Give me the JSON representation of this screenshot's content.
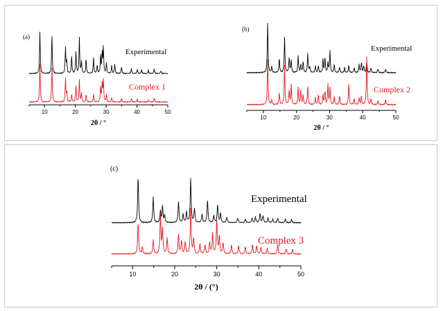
{
  "colors": {
    "experimental": "#000000",
    "simulated": "#e8141c",
    "axis": "#000000",
    "frame": "#c9c9c9"
  },
  "chart_data": [
    {
      "type": "line",
      "panel_label": "(a)",
      "xlabel": "2θ / °",
      "xlim": [
        5,
        50
      ],
      "xticks": [
        10,
        20,
        30,
        40,
        50
      ],
      "y_axis_shown": false,
      "series": [
        {
          "name": "Experimental",
          "color": "#000000",
          "peaks": [
            [
              8.5,
              1.0
            ],
            [
              12.4,
              0.92
            ],
            [
              16.8,
              0.62
            ],
            [
              17.2,
              0.3
            ],
            [
              18.8,
              0.42
            ],
            [
              20.2,
              0.52
            ],
            [
              21.3,
              0.85
            ],
            [
              22.0,
              0.28
            ],
            [
              23.5,
              0.35
            ],
            [
              25.9,
              0.38
            ],
            [
              27.1,
              0.2
            ],
            [
              28.2,
              0.42
            ],
            [
              28.7,
              0.5
            ],
            [
              29.1,
              0.62
            ],
            [
              30.1,
              0.26
            ],
            [
              31.8,
              0.2
            ],
            [
              32.8,
              0.22
            ],
            [
              35.0,
              0.16
            ],
            [
              38.2,
              0.12
            ],
            [
              40.1,
              0.1
            ],
            [
              41.5,
              0.1
            ],
            [
              43.7,
              0.08
            ],
            [
              45.6,
              0.12
            ],
            [
              47.8,
              0.07
            ]
          ]
        },
        {
          "name": "Complex 1",
          "color": "#e8141c",
          "peaks": [
            [
              8.5,
              1.0
            ],
            [
              12.4,
              0.92
            ],
            [
              16.8,
              0.6
            ],
            [
              17.2,
              0.25
            ],
            [
              18.8,
              0.2
            ],
            [
              20.2,
              0.42
            ],
            [
              21.3,
              0.58
            ],
            [
              22.0,
              0.22
            ],
            [
              23.5,
              0.2
            ],
            [
              25.9,
              0.2
            ],
            [
              28.2,
              0.38
            ],
            [
              28.7,
              0.5
            ],
            [
              29.1,
              0.58
            ],
            [
              30.1,
              0.18
            ],
            [
              31.8,
              0.12
            ],
            [
              35.0,
              0.1
            ],
            [
              38.2,
              0.1
            ],
            [
              40.1,
              0.08
            ],
            [
              43.7,
              0.06
            ],
            [
              45.6,
              0.1
            ]
          ]
        }
      ]
    },
    {
      "type": "line",
      "panel_label": "(b)",
      "xlabel": "2θ / °",
      "xlim": [
        5,
        50
      ],
      "xticks": [
        10,
        20,
        30,
        40,
        50
      ],
      "y_axis_shown": false,
      "series": [
        {
          "name": "Experimental",
          "color": "#000000",
          "peaks": [
            [
              11.3,
              1.0
            ],
            [
              12.5,
              0.12
            ],
            [
              14.8,
              0.28
            ],
            [
              16.4,
              0.7
            ],
            [
              17.8,
              0.3
            ],
            [
              18.4,
              0.25
            ],
            [
              20.5,
              0.34
            ],
            [
              21.3,
              0.16
            ],
            [
              22.0,
              0.22
            ],
            [
              23.4,
              0.38
            ],
            [
              24.0,
              0.12
            ],
            [
              25.7,
              0.14
            ],
            [
              26.6,
              0.14
            ],
            [
              28.0,
              0.26
            ],
            [
              28.6,
              0.3
            ],
            [
              29.5,
              0.2
            ],
            [
              30.1,
              0.44
            ],
            [
              31.4,
              0.16
            ],
            [
              33.0,
              0.12
            ],
            [
              34.5,
              0.1
            ],
            [
              35.8,
              0.14
            ],
            [
              37.4,
              0.1
            ],
            [
              38.9,
              0.16
            ],
            [
              39.6,
              0.2
            ],
            [
              40.3,
              0.14
            ],
            [
              41.2,
              0.22
            ],
            [
              42.5,
              0.1
            ],
            [
              44.6,
              0.08
            ],
            [
              46.9,
              0.07
            ]
          ]
        },
        {
          "name": "Complex 2",
          "color": "#e8141c",
          "peaks": [
            [
              11.3,
              0.95
            ],
            [
              12.5,
              0.1
            ],
            [
              14.8,
              0.25
            ],
            [
              16.4,
              0.8
            ],
            [
              17.8,
              0.3
            ],
            [
              18.4,
              0.4
            ],
            [
              20.5,
              0.35
            ],
            [
              21.3,
              0.3
            ],
            [
              22.0,
              0.2
            ],
            [
              23.4,
              0.38
            ],
            [
              25.7,
              0.14
            ],
            [
              26.6,
              0.2
            ],
            [
              28.0,
              0.2
            ],
            [
              28.6,
              0.28
            ],
            [
              29.5,
              0.42
            ],
            [
              30.1,
              0.34
            ],
            [
              31.4,
              0.16
            ],
            [
              33.0,
              0.18
            ],
            [
              35.8,
              0.44
            ],
            [
              37.4,
              0.12
            ],
            [
              38.9,
              0.14
            ],
            [
              39.6,
              0.18
            ],
            [
              41.2,
              0.98
            ],
            [
              42.5,
              0.12
            ],
            [
              44.6,
              0.08
            ],
            [
              46.9,
              0.1
            ]
          ]
        }
      ]
    },
    {
      "type": "line",
      "panel_label": "(c)",
      "xlabel": "2θ / (°)",
      "xlim": [
        5,
        50
      ],
      "xticks": [
        10,
        20,
        30,
        40,
        50
      ],
      "y_axis_shown": false,
      "series": [
        {
          "name": "Experimental",
          "color": "#000000",
          "peaks": [
            [
              11.3,
              1.0
            ],
            [
              14.9,
              0.55
            ],
            [
              16.6,
              0.25
            ],
            [
              17.1,
              0.35
            ],
            [
              17.6,
              0.15
            ],
            [
              20.9,
              0.45
            ],
            [
              22.0,
              0.18
            ],
            [
              22.8,
              0.22
            ],
            [
              23.8,
              0.95
            ],
            [
              24.7,
              0.3
            ],
            [
              26.5,
              0.18
            ],
            [
              27.8,
              0.48
            ],
            [
              29.3,
              0.15
            ],
            [
              30.2,
              0.38
            ],
            [
              30.9,
              0.2
            ],
            [
              32.4,
              0.12
            ],
            [
              35.0,
              0.1
            ],
            [
              36.8,
              0.08
            ],
            [
              38.4,
              0.1
            ],
            [
              39.2,
              0.12
            ],
            [
              40.3,
              0.2
            ],
            [
              41.0,
              0.15
            ],
            [
              42.2,
              0.1
            ],
            [
              43.3,
              0.08
            ],
            [
              44.5,
              0.1
            ],
            [
              46.3,
              0.08
            ],
            [
              47.8,
              0.07
            ]
          ]
        },
        {
          "name": "Complex 3",
          "color": "#e8141c",
          "peaks": [
            [
              11.3,
              0.7
            ],
            [
              12.3,
              0.15
            ],
            [
              14.9,
              0.3
            ],
            [
              16.6,
              0.85
            ],
            [
              17.1,
              0.55
            ],
            [
              18.2,
              0.35
            ],
            [
              20.9,
              0.42
            ],
            [
              21.6,
              0.3
            ],
            [
              22.5,
              0.26
            ],
            [
              23.8,
              1.0
            ],
            [
              24.5,
              0.35
            ],
            [
              26.0,
              0.22
            ],
            [
              27.2,
              0.2
            ],
            [
              28.3,
              0.25
            ],
            [
              29.0,
              0.45
            ],
            [
              30.0,
              0.75
            ],
            [
              30.6,
              0.4
            ],
            [
              31.5,
              0.25
            ],
            [
              33.5,
              0.2
            ],
            [
              35.2,
              0.18
            ],
            [
              36.8,
              0.15
            ],
            [
              38.5,
              0.2
            ],
            [
              39.5,
              0.18
            ],
            [
              40.5,
              0.15
            ],
            [
              42.0,
              0.12
            ],
            [
              44.5,
              0.2
            ],
            [
              46.5,
              0.12
            ],
            [
              48.0,
              0.1
            ]
          ]
        }
      ]
    }
  ]
}
